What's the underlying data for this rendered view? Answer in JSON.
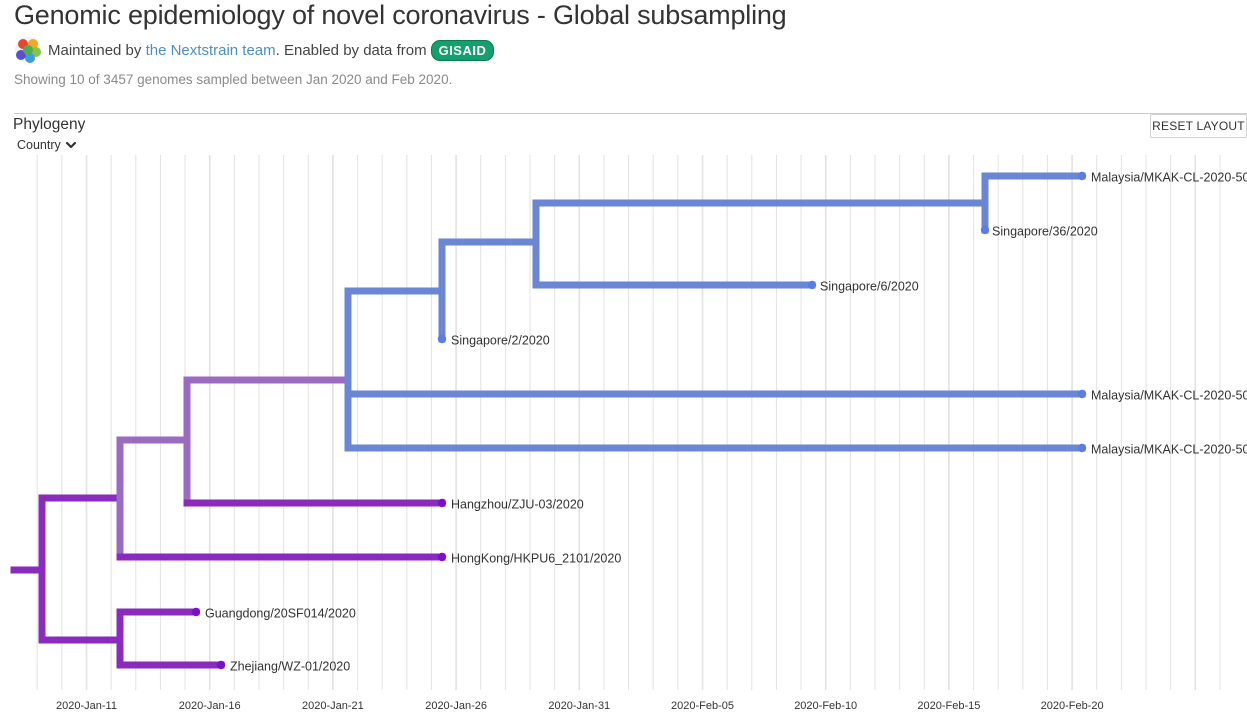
{
  "header": {
    "title": "Genomic epidemiology of novel coronavirus - Global subsampling",
    "maintained_prefix": "Maintained by ",
    "maintainer_link": "the Nextstrain team",
    "enabled_text": ". Enabled by data from",
    "gisaid_badge": "GISAID",
    "summary": "Showing 10 of 3457 genomes sampled between Jan 2020 and Feb 2020."
  },
  "panel": {
    "title": "Phylogeny",
    "reset_label": "RESET LAYOUT",
    "color_by": "Country"
  },
  "colors": {
    "purple": "#8a2bbd",
    "mid_purple": "#9a6bc0",
    "blue": "#6a86d4",
    "tip_blue": "#5b7be6",
    "tip_purple": "#7a10c8",
    "grid": "#e2e2e2"
  },
  "x_axis": {
    "ticks": [
      "2020-Jan-11",
      "2020-Jan-16",
      "2020-Jan-21",
      "2020-Jan-26",
      "2020-Jan-31",
      "2020-Feb-05",
      "2020-Feb-10",
      "2020-Feb-15",
      "2020-Feb-20"
    ]
  },
  "tips": [
    {
      "name": "Malaysia/MKAK-CL-2020-50",
      "date": "2020-02-20",
      "color": "blue"
    },
    {
      "name": "Singapore/36/2020",
      "date": "2020-02-16",
      "color": "blue"
    },
    {
      "name": "Singapore/6/2020",
      "date": "2020-02-09",
      "color": "blue"
    },
    {
      "name": "Singapore/2/2020",
      "date": "2020-01-25",
      "color": "blue"
    },
    {
      "name": "Malaysia/MKAK-CL-2020-50",
      "date": "2020-02-20",
      "color": "blue"
    },
    {
      "name": "Malaysia/MKAK-CL-2020-50",
      "date": "2020-02-20",
      "color": "blue"
    },
    {
      "name": "Hangzhou/ZJU-03/2020",
      "date": "2020-01-25",
      "color": "purple"
    },
    {
      "name": "HongKong/HKPU6_2101/2020",
      "date": "2020-01-25",
      "color": "purple"
    },
    {
      "name": "Guangdong/20SF014/2020",
      "date": "2020-01-15",
      "color": "purple"
    },
    {
      "name": "Zhejiang/WZ-01/2020",
      "date": "2020-01-16",
      "color": "purple"
    }
  ]
}
